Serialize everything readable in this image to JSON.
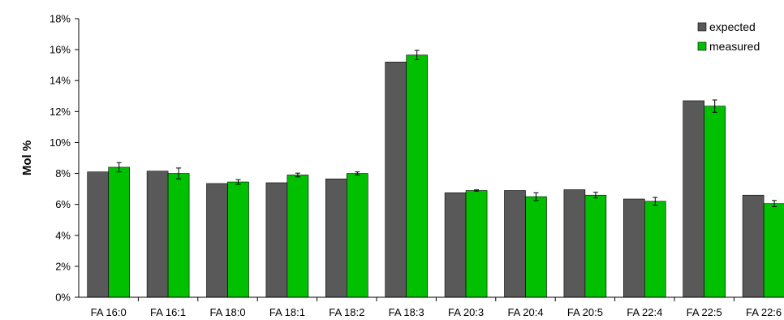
{
  "chart_data": {
    "type": "bar",
    "ylabel": "Mol %",
    "categories": [
      "FA 16:0",
      "FA 16:1",
      "FA 18:0",
      "FA 18:1",
      "FA 18:2",
      "FA 18:3",
      "FA 20:3",
      "FA 20:4",
      "FA 20:5",
      "FA 22:4",
      "FA 22:5",
      "FA 22:6"
    ],
    "ylim": [
      0,
      18
    ],
    "yticks": [
      0,
      2,
      4,
      6,
      8,
      10,
      12,
      14,
      16,
      18
    ],
    "ytick_labels": [
      "0%",
      "2%",
      "4%",
      "6%",
      "8%",
      "10%",
      "12%",
      "14%",
      "16%",
      "18%"
    ],
    "grid": false,
    "legend_position": "top-right",
    "series": [
      {
        "name": "expected",
        "color": "#595959",
        "values": [
          8.1,
          8.15,
          7.35,
          7.4,
          7.65,
          15.2,
          6.75,
          6.9,
          6.95,
          6.35,
          12.7,
          6.6
        ]
      },
      {
        "name": "measured",
        "color": "#00c000",
        "values": [
          8.4,
          8.0,
          7.45,
          7.9,
          8.0,
          15.65,
          6.9,
          6.5,
          6.6,
          6.2,
          12.35,
          6.05
        ],
        "errors": [
          0.3,
          0.35,
          0.15,
          0.12,
          0.1,
          0.3,
          0.04,
          0.25,
          0.18,
          0.25,
          0.4,
          0.2
        ]
      }
    ]
  }
}
